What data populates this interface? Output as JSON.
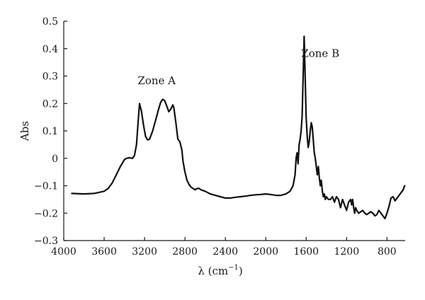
{
  "chart_data": {
    "type": "line",
    "xlabel": "λ (cm",
    "xlabel_exp": "−1",
    "xlabel_close": ")",
    "ylabel": "Abs",
    "xlim": [
      4000,
      620
    ],
    "ylim": [
      -0.3,
      0.5
    ],
    "x_ticks": [
      4000,
      3600,
      3200,
      2800,
      2400,
      2000,
      1600,
      1200,
      800
    ],
    "x_tick_labels": [
      "4000",
      "3600",
      "3200",
      "2800",
      "2400",
      "2000",
      "1600",
      "1200",
      "800"
    ],
    "y_ticks": [
      -0.3,
      -0.2,
      -0.1,
      0,
      0.1,
      0.2,
      0.3,
      0.4,
      0.5
    ],
    "y_tick_labels": [
      "−0.3",
      "−0.2",
      "−0.1",
      "0",
      "0.1",
      "0.2",
      "0.3",
      "0.4",
      "0.5"
    ],
    "grid": false,
    "annotations": [
      {
        "text": "Zone A",
        "x": 3080,
        "y": 0.27
      },
      {
        "text": "Zone B",
        "x": 1460,
        "y": 0.37
      }
    ],
    "series": [
      {
        "color": "#111111",
        "x": [
          3920,
          3800,
          3700,
          3600,
          3560,
          3520,
          3480,
          3440,
          3400,
          3380,
          3350,
          3320,
          3300,
          3280,
          3260,
          3250,
          3230,
          3210,
          3190,
          3170,
          3150,
          3120,
          3090,
          3060,
          3040,
          3020,
          3000,
          2980,
          2960,
          2940,
          2920,
          2910,
          2890,
          2870,
          2850,
          2830,
          2820,
          2800,
          2780,
          2760,
          2740,
          2720,
          2700,
          2680,
          2660,
          2640,
          2600,
          2550,
          2500,
          2450,
          2400,
          2350,
          2300,
          2250,
          2200,
          2150,
          2100,
          2050,
          2000,
          1950,
          1900,
          1850,
          1800,
          1760,
          1730,
          1710,
          1700,
          1690,
          1680,
          1670,
          1660,
          1650,
          1640,
          1630,
          1620,
          1610,
          1600,
          1590,
          1580,
          1570,
          1560,
          1550,
          1540,
          1530,
          1520,
          1510,
          1500,
          1490,
          1480,
          1470,
          1460,
          1450,
          1440,
          1430,
          1420,
          1410,
          1400,
          1380,
          1360,
          1340,
          1320,
          1300,
          1280,
          1260,
          1240,
          1220,
          1200,
          1180,
          1160,
          1150,
          1140,
          1130,
          1120,
          1110,
          1100,
          1080,
          1060,
          1040,
          1020,
          1000,
          980,
          960,
          940,
          920,
          900,
          880,
          860,
          840,
          820,
          800,
          780,
          760,
          740,
          720,
          700,
          680,
          660,
          640,
          625
        ],
        "y": [
          -0.128,
          -0.13,
          -0.128,
          -0.12,
          -0.11,
          -0.09,
          -0.06,
          -0.03,
          -0.005,
          0.0,
          0.002,
          0.0,
          0.01,
          0.05,
          0.15,
          0.2,
          0.17,
          0.12,
          0.08,
          0.067,
          0.07,
          0.1,
          0.14,
          0.18,
          0.205,
          0.215,
          0.21,
          0.19,
          0.17,
          0.18,
          0.195,
          0.185,
          0.13,
          0.07,
          0.06,
          0.03,
          -0.01,
          -0.05,
          -0.08,
          -0.095,
          -0.105,
          -0.11,
          -0.115,
          -0.11,
          -0.11,
          -0.115,
          -0.12,
          -0.13,
          -0.135,
          -0.14,
          -0.145,
          -0.145,
          -0.142,
          -0.14,
          -0.138,
          -0.135,
          -0.133,
          -0.132,
          -0.13,
          -0.132,
          -0.135,
          -0.135,
          -0.13,
          -0.12,
          -0.1,
          -0.06,
          0.0,
          0.02,
          -0.02,
          0.05,
          0.07,
          0.1,
          0.15,
          0.3,
          0.445,
          0.3,
          0.15,
          0.08,
          0.04,
          0.06,
          0.1,
          0.13,
          0.115,
          0.07,
          0.02,
          0.0,
          -0.03,
          -0.06,
          -0.03,
          -0.07,
          -0.1,
          -0.08,
          -0.12,
          -0.14,
          -0.13,
          -0.15,
          -0.14,
          -0.15,
          -0.15,
          -0.14,
          -0.16,
          -0.14,
          -0.15,
          -0.18,
          -0.15,
          -0.17,
          -0.19,
          -0.16,
          -0.15,
          -0.17,
          -0.15,
          -0.18,
          -0.2,
          -0.18,
          -0.19,
          -0.2,
          -0.195,
          -0.19,
          -0.2,
          -0.205,
          -0.2,
          -0.195,
          -0.2,
          -0.21,
          -0.205,
          -0.19,
          -0.2,
          -0.21,
          -0.22,
          -0.2,
          -0.175,
          -0.145,
          -0.14,
          -0.155,
          -0.145,
          -0.135,
          -0.125,
          -0.115,
          -0.1
        ]
      }
    ]
  }
}
